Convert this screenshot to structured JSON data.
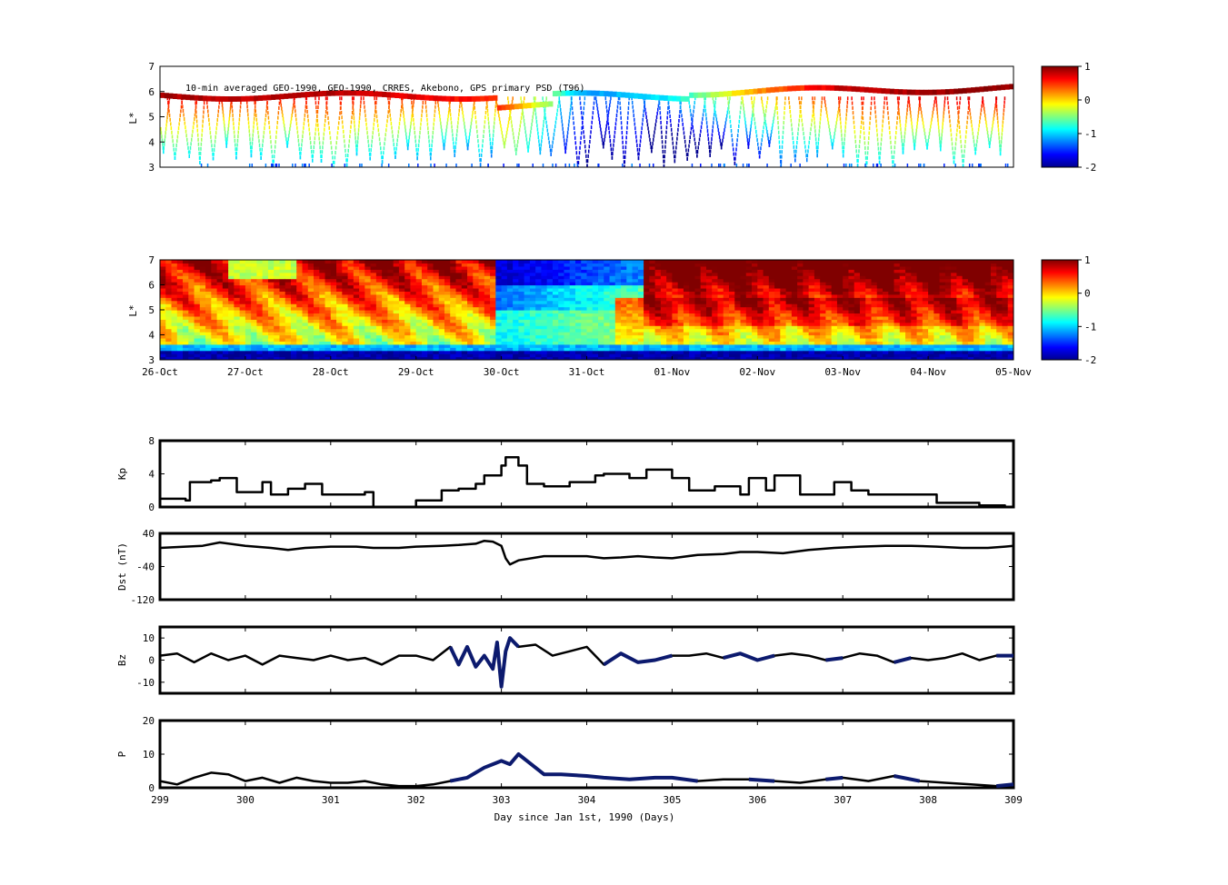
{
  "colors": {
    "line": "#000000",
    "highlight": "#0c1a6e",
    "colormap": [
      "#00008f",
      "#0000ff",
      "#00ffff",
      "#ffff00",
      "#ff0000",
      "#800000"
    ]
  },
  "chart_data": [
    {
      "type": "heatmap",
      "id": "psd-observed",
      "title": "10-min averaged GEO-1990, GEO-1990, CRRES, Akebono, GPS  primary PSD (T96)",
      "ylabel": "L*",
      "ylim": [
        3,
        7
      ],
      "yticks": [
        "3",
        "4",
        "5",
        "6",
        "7"
      ],
      "x_range_days": [
        299,
        309
      ],
      "colorbar": {
        "range": [
          -2,
          1
        ],
        "ticks": [
          "1",
          "0",
          "-1",
          "-2"
        ]
      },
      "description_values": {
        "geo_band_L": [
          5.6,
          6.2
        ],
        "geo_band_log_psd": [
          0.9,
          0.8,
          0.85,
          0.7,
          0.5,
          -1.2,
          -0.9,
          0.2,
          0.8,
          0.9,
          0.95
        ]
      }
    },
    {
      "type": "heatmap",
      "id": "psd-reanalysis",
      "title": "",
      "ylabel": "L*",
      "ylim": [
        3,
        7
      ],
      "yticks": [
        "3",
        "4",
        "5",
        "6",
        "7"
      ],
      "xtick_labels": [
        "26-Oct",
        "27-Oct",
        "28-Oct",
        "29-Oct",
        "30-Oct",
        "31-Oct",
        "01-Nov",
        "02-Nov",
        "03-Nov",
        "04-Nov",
        "05-Nov"
      ],
      "colorbar": {
        "range": [
          -2,
          1
        ],
        "ticks": [
          "1",
          "0",
          "-1",
          "-2"
        ]
      }
    },
    {
      "type": "line",
      "id": "kp",
      "ylabel": "Kp",
      "ylim": [
        0,
        8
      ],
      "yticks": [
        "0",
        "4",
        "8"
      ],
      "x": [
        299,
        299.3,
        299.35,
        299.6,
        299.7,
        299.9,
        300.0,
        300.2,
        300.3,
        300.5,
        300.7,
        300.9,
        301.2,
        301.4,
        301.5,
        301.8,
        302.0,
        302.3,
        302.5,
        302.7,
        302.8,
        303.0,
        303.05,
        303.2,
        303.3,
        303.5,
        303.8,
        304.1,
        304.2,
        304.5,
        304.7,
        304.9,
        305.0,
        305.2,
        305.5,
        305.8,
        305.9,
        306.1,
        306.2,
        306.5,
        306.8,
        306.9,
        307.1,
        307.3,
        307.6,
        307.9,
        308.1,
        308.3,
        308.6,
        308.9,
        309.0
      ],
      "values": [
        1,
        0.8,
        3,
        3.2,
        3.5,
        1.8,
        1.8,
        3,
        1.5,
        2.2,
        2.8,
        1.5,
        1.5,
        1.8,
        0,
        0,
        0.8,
        2,
        2.2,
        2.8,
        3.8,
        5,
        6,
        5,
        2.8,
        2.5,
        3,
        3.8,
        4,
        3.5,
        4.5,
        4.5,
        3.5,
        2,
        2.5,
        1.5,
        3.5,
        2,
        3.8,
        1.5,
        1.5,
        3,
        2,
        1.5,
        1.5,
        1.5,
        0.5,
        0.5,
        0.2,
        0,
        0
      ]
    },
    {
      "type": "line",
      "id": "dst",
      "ylabel": "Dst (nT)",
      "ylim": [
        -120,
        40
      ],
      "yticks": [
        "-120",
        "-40",
        "40"
      ],
      "x": [
        299,
        299.3,
        299.5,
        299.7,
        300.0,
        300.3,
        300.5,
        300.7,
        301.0,
        301.3,
        301.5,
        301.8,
        302.0,
        302.3,
        302.5,
        302.7,
        302.8,
        302.9,
        303.0,
        303.05,
        303.1,
        303.2,
        303.5,
        303.8,
        304.0,
        304.2,
        304.4,
        304.6,
        304.8,
        305.0,
        305.3,
        305.6,
        305.8,
        306.0,
        306.3,
        306.6,
        306.9,
        307.2,
        307.5,
        307.8,
        308.1,
        308.4,
        308.7,
        308.9,
        309.0
      ],
      "values": [
        5,
        8,
        10,
        18,
        10,
        5,
        0,
        5,
        8,
        8,
        5,
        5,
        8,
        10,
        12,
        15,
        22,
        20,
        10,
        -20,
        -35,
        -25,
        -15,
        -15,
        -15,
        -20,
        -18,
        -15,
        -18,
        -20,
        -12,
        -10,
        -5,
        -5,
        -8,
        0,
        5,
        8,
        10,
        10,
        8,
        5,
        5,
        8,
        10
      ]
    },
    {
      "type": "line",
      "id": "bz",
      "ylabel": "Bz",
      "ylim": [
        -15,
        15
      ],
      "yticks": [
        "-10",
        "0",
        "10"
      ],
      "x": [
        299,
        299.2,
        299.4,
        299.6,
        299.8,
        300.0,
        300.2,
        300.4,
        300.6,
        300.8,
        301.0,
        301.2,
        301.4,
        301.6,
        301.8,
        302.0,
        302.2,
        302.4,
        302.5,
        302.6,
        302.7,
        302.8,
        302.9,
        302.95,
        303.0,
        303.05,
        303.1,
        303.2,
        303.4,
        303.6,
        303.8,
        304.0,
        304.2,
        304.4,
        304.6,
        304.8,
        305.0,
        305.2,
        305.4,
        305.6,
        305.8,
        306.0,
        306.2,
        306.4,
        306.6,
        306.8,
        307.0,
        307.2,
        307.4,
        307.6,
        307.8,
        308.0,
        308.2,
        308.4,
        308.6,
        308.8,
        309.0
      ],
      "values": [
        2,
        3,
        -1,
        3,
        0,
        2,
        -2,
        2,
        1,
        0,
        2,
        0,
        1,
        -2,
        2,
        2,
        0,
        6,
        -2,
        6,
        -3,
        2,
        -4,
        8,
        -12,
        4,
        10,
        6,
        7,
        2,
        4,
        6,
        -2,
        3,
        -1,
        0,
        2,
        2,
        3,
        1,
        3,
        0,
        2,
        3,
        2,
        0,
        1,
        3,
        2,
        -1,
        1,
        0,
        1,
        3,
        0,
        2,
        2
      ],
      "highlight_segments": [
        [
          302.3,
          303.2
        ],
        [
          304.2,
          305.0
        ],
        [
          305.5,
          306.2
        ],
        [
          306.7,
          307.1
        ],
        [
          307.5,
          307.9
        ],
        [
          308.8,
          309.0
        ]
      ]
    },
    {
      "type": "line",
      "id": "pressure",
      "ylabel": "P",
      "ylim": [
        0,
        20
      ],
      "yticks": [
        "0",
        "10",
        "20"
      ],
      "xlabel": "Day since Jan 1st, 1990 (Days)",
      "xticks": [
        "299",
        "300",
        "301",
        "302",
        "303",
        "304",
        "305",
        "306",
        "307",
        "308",
        "309"
      ],
      "x": [
        299,
        299.2,
        299.4,
        299.6,
        299.8,
        300.0,
        300.2,
        300.4,
        300.6,
        300.8,
        301.0,
        301.2,
        301.4,
        301.6,
        301.8,
        302.0,
        302.2,
        302.4,
        302.6,
        302.8,
        302.9,
        303.0,
        303.1,
        303.2,
        303.3,
        303.5,
        303.7,
        304.0,
        304.2,
        304.5,
        304.8,
        305.0,
        305.3,
        305.6,
        305.9,
        306.2,
        306.5,
        306.8,
        307.0,
        307.3,
        307.6,
        307.9,
        308.2,
        308.5,
        308.8,
        309.0
      ],
      "values": [
        2,
        1,
        3,
        4.5,
        4,
        2,
        3,
        1.5,
        3,
        2,
        1.5,
        1.5,
        2,
        1,
        0.5,
        0.5,
        1,
        2,
        3,
        6,
        7,
        8,
        7,
        10,
        8,
        4,
        4,
        3.5,
        3,
        2.5,
        3,
        3,
        2,
        2.5,
        2.5,
        2,
        1.5,
        2.5,
        3,
        2,
        3.5,
        2,
        1.5,
        1,
        0.5,
        1
      ],
      "highlight_segments": [
        [
          301.3,
          301.4
        ],
        [
          302.4,
          305.5
        ],
        [
          305.7,
          306.2
        ],
        [
          306.6,
          307.2
        ],
        [
          307.5,
          307.9
        ],
        [
          308.7,
          309.0
        ]
      ]
    }
  ]
}
